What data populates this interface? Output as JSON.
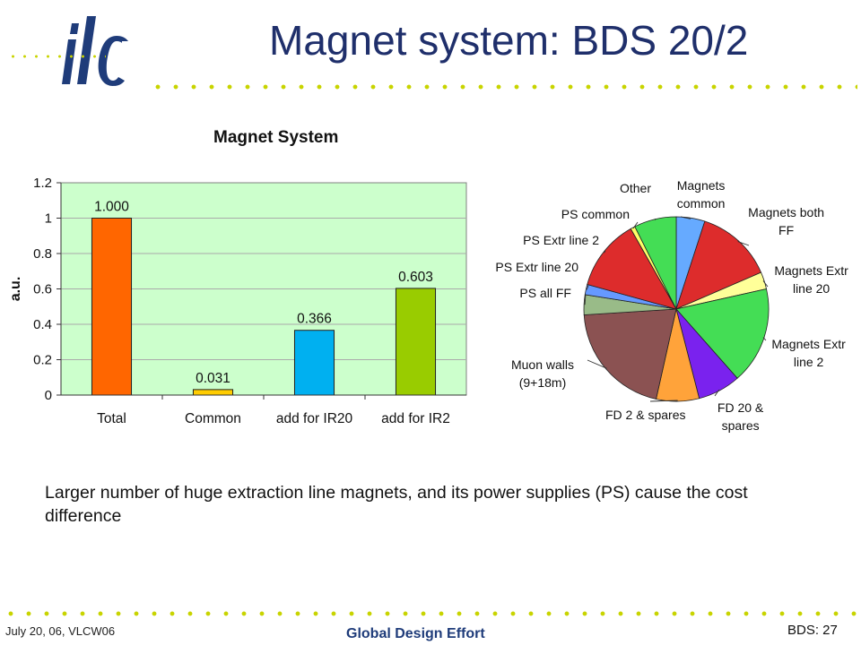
{
  "slide": {
    "title": "Magnet system: BDS 20/2",
    "body_text": "Larger number of huge extraction line magnets, and its power supplies (PS) cause the cost difference",
    "footer_left": "July 20, 06, VLCW06",
    "footer_center": "Global Design Effort",
    "footer_right": "BDS: 27",
    "logo_text": "ilc",
    "colors": {
      "title": "#1f2f6b",
      "dots": "#c8d400",
      "logo": "#1f3c7a"
    }
  },
  "chart_data": [
    {
      "type": "bar",
      "title": "Magnet System",
      "xlabel": "",
      "ylabel": "a.u.",
      "ylim": [
        0,
        1.2
      ],
      "yticks": [
        "0",
        "0.2",
        "0.4",
        "0.6",
        "0.8",
        "1",
        "1.2"
      ],
      "categories": [
        "Total",
        "Common",
        "add for IR20",
        "add for IR2"
      ],
      "values": [
        1.0,
        0.031,
        0.366,
        0.603
      ],
      "data_labels": [
        "1.000",
        "0.031",
        "0.366",
        "0.603"
      ],
      "colors": [
        "#ff6600",
        "#ffcc00",
        "#00b0f0",
        "#99cc00"
      ],
      "plot_background": "#ccffcc",
      "grid": true
    },
    {
      "type": "pie",
      "title": "",
      "slices": [
        {
          "label": "Magnets common",
          "value": 5.0,
          "color": "#66aaff"
        },
        {
          "label": "Magnets both FF",
          "value": 13.5,
          "color": "#dd2c2c"
        },
        {
          "label": "Magnets Extr line 20",
          "value": 3.0,
          "color": "#ffff99"
        },
        {
          "label": "Magnets Extr line 2",
          "value": 17.0,
          "color": "#44dd55"
        },
        {
          "label": "FD 20 & spares",
          "value": 7.5,
          "color": "#7a22ee"
        },
        {
          "label": "FD 2 & spares",
          "value": 7.5,
          "color": "#ffa33a"
        },
        {
          "label": "Muon walls (9+18m)",
          "value": 20.5,
          "color": "#8b5252"
        },
        {
          "label": "PS all FF",
          "value": 3.5,
          "color": "#99bb88"
        },
        {
          "label": "PS Extr line 20",
          "value": 1.8,
          "color": "#6699ff"
        },
        {
          "label": "PS Extr line 2",
          "value": 12.5,
          "color": "#dd2c2c"
        },
        {
          "label": "PS common",
          "value": 0.8,
          "color": "#ffff66"
        },
        {
          "label": "Other",
          "value": 7.4,
          "color": "#44dd55"
        }
      ]
    }
  ]
}
